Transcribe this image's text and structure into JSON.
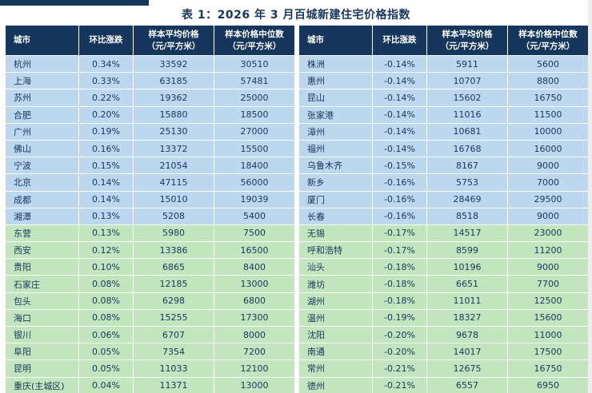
{
  "title": "表 1：2026 年 3 月百城新建住宅价格指数",
  "headers": {
    "city": "城市",
    "change": "环比涨跌",
    "avg_price": "样本平均价格",
    "median_price": "样本价格中位数",
    "unit": "（元/平方米）"
  },
  "colors": {
    "header_bg": "#17365d",
    "header_text": "#ffffff",
    "row_blue": "#bdd7ee",
    "row_green": "#c3e5be",
    "text": "#17365d"
  },
  "left_rows": [
    {
      "city": "杭州",
      "change": "0.34%",
      "avg": "33592",
      "median": "30510",
      "group": "blue"
    },
    {
      "city": "上海",
      "change": "0.33%",
      "avg": "63185",
      "median": "57481",
      "group": "blue"
    },
    {
      "city": "苏州",
      "change": "0.22%",
      "avg": "19362",
      "median": "25000",
      "group": "blue"
    },
    {
      "city": "合肥",
      "change": "0.20%",
      "avg": "15880",
      "median": "18500",
      "group": "blue"
    },
    {
      "city": "广州",
      "change": "0.19%",
      "avg": "25130",
      "median": "27000",
      "group": "blue"
    },
    {
      "city": "佛山",
      "change": "0.16%",
      "avg": "13372",
      "median": "15500",
      "group": "blue"
    },
    {
      "city": "宁波",
      "change": "0.15%",
      "avg": "21054",
      "median": "18400",
      "group": "blue"
    },
    {
      "city": "北京",
      "change": "0.14%",
      "avg": "47115",
      "median": "56000",
      "group": "blue"
    },
    {
      "city": "成都",
      "change": "0.14%",
      "avg": "15010",
      "median": "19039",
      "group": "blue"
    },
    {
      "city": "湘潭",
      "change": "0.13%",
      "avg": "5208",
      "median": "5400",
      "group": "blue"
    },
    {
      "city": "东营",
      "change": "0.13%",
      "avg": "5980",
      "median": "7500",
      "group": "green"
    },
    {
      "city": "西安",
      "change": "0.12%",
      "avg": "13386",
      "median": "16500",
      "group": "green"
    },
    {
      "city": "贵阳",
      "change": "0.10%",
      "avg": "6865",
      "median": "8400",
      "group": "green"
    },
    {
      "city": "石家庄",
      "change": "0.08%",
      "avg": "12185",
      "median": "13000",
      "group": "green"
    },
    {
      "city": "包头",
      "change": "0.08%",
      "avg": "6298",
      "median": "6800",
      "group": "green"
    },
    {
      "city": "海口",
      "change": "0.08%",
      "avg": "15255",
      "median": "17300",
      "group": "green"
    },
    {
      "city": "银川",
      "change": "0.06%",
      "avg": "6707",
      "median": "8000",
      "group": "green"
    },
    {
      "city": "阜阳",
      "change": "0.05%",
      "avg": "7354",
      "median": "7200",
      "group": "green"
    },
    {
      "city": "昆明",
      "change": "0.05%",
      "avg": "11033",
      "median": "12100",
      "group": "green"
    },
    {
      "city": "重庆(主城区)",
      "change": "0.04%",
      "avg": "11371",
      "median": "13000",
      "group": "green"
    }
  ],
  "right_rows": [
    {
      "city": "株洲",
      "change": "-0.14%",
      "avg": "5911",
      "median": "5600",
      "group": "blue"
    },
    {
      "city": "惠州",
      "change": "-0.14%",
      "avg": "10707",
      "median": "8800",
      "group": "blue"
    },
    {
      "city": "昆山",
      "change": "-0.14%",
      "avg": "15602",
      "median": "16750",
      "group": "blue"
    },
    {
      "city": "张家港",
      "change": "-0.14%",
      "avg": "11016",
      "median": "11500",
      "group": "blue"
    },
    {
      "city": "漳州",
      "change": "-0.14%",
      "avg": "10681",
      "median": "10000",
      "group": "blue"
    },
    {
      "city": "福州",
      "change": "-0.14%",
      "avg": "16768",
      "median": "16000",
      "group": "blue"
    },
    {
      "city": "乌鲁木齐",
      "change": "-0.15%",
      "avg": "8167",
      "median": "9000",
      "group": "blue"
    },
    {
      "city": "新乡",
      "change": "-0.16%",
      "avg": "5753",
      "median": "7000",
      "group": "blue"
    },
    {
      "city": "厦门",
      "change": "-0.16%",
      "avg": "28469",
      "median": "29500",
      "group": "blue"
    },
    {
      "city": "长春",
      "change": "-0.16%",
      "avg": "8518",
      "median": "9000",
      "group": "blue"
    },
    {
      "city": "无锡",
      "change": "-0.17%",
      "avg": "14517",
      "median": "23000",
      "group": "green"
    },
    {
      "city": "呼和浩特",
      "change": "-0.17%",
      "avg": "8599",
      "median": "11200",
      "group": "green"
    },
    {
      "city": "汕头",
      "change": "-0.18%",
      "avg": "10196",
      "median": "9000",
      "group": "green"
    },
    {
      "city": "潍坊",
      "change": "-0.18%",
      "avg": "6651",
      "median": "7700",
      "group": "green"
    },
    {
      "city": "湖州",
      "change": "-0.18%",
      "avg": "11011",
      "median": "12500",
      "group": "green"
    },
    {
      "city": "温州",
      "change": "-0.19%",
      "avg": "18327",
      "median": "15600",
      "group": "green"
    },
    {
      "city": "沈阳",
      "change": "-0.20%",
      "avg": "9678",
      "median": "11000",
      "group": "green"
    },
    {
      "city": "南通",
      "change": "-0.20%",
      "avg": "14017",
      "median": "17500",
      "group": "green"
    },
    {
      "city": "常州",
      "change": "-0.21%",
      "avg": "12675",
      "median": "16750",
      "group": "green"
    },
    {
      "city": "德州",
      "change": "-0.21%",
      "avg": "6557",
      "median": "6950",
      "group": "green"
    }
  ]
}
